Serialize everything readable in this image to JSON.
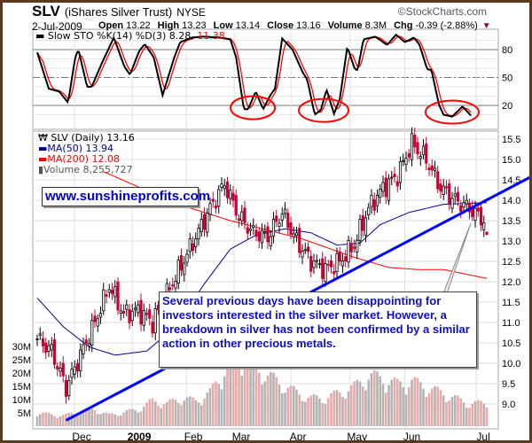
{
  "header": {
    "ticker": "SLV",
    "name": "(iShares Silver Trust)",
    "exchange": "NYSE",
    "copyright": "©StockCharts.com",
    "date": "2-Jul-2009",
    "open_label": "Open",
    "open": "13.22",
    "high_label": "High",
    "high": "13.23",
    "low_label": "Low",
    "low": "13.14",
    "close_label": "Close",
    "close": "13.16",
    "volume_label": "Volume",
    "volume": "8.3M",
    "chg_label": "Chg",
    "chg": "-0.39 (-2.88%)"
  },
  "annotations": {
    "website": "www.sunshineprofits.com",
    "note": "Several previous days have been disappointing for investors interested in the silver market. However, a breakdown in silver has not been confirmed by a similar action in other precious metals."
  },
  "colors": {
    "k_line": "#000000",
    "d_line": "#ff0000",
    "ma50": "#000099",
    "ma200": "#ff0000",
    "up_candle": "#000000",
    "down_candle": "#cc0033",
    "vol_up": "#b4b4b4",
    "vol_down": "#e9aaaa",
    "trendline": "#0000ff",
    "ellipse": "#ff0000",
    "text_blue": "#0000cc"
  },
  "chart_data": [
    {
      "type": "line",
      "title": "Slow STO %K(14) %D(3)",
      "legend": {
        "label": "Slow STO %K(14) %D(3)",
        "k_value": "8.28,",
        "d_value": "11.38"
      },
      "ylim": [
        0,
        100
      ],
      "y_ticks": [
        "80",
        "50",
        "20"
      ],
      "y_tick_values": [
        80,
        50,
        20
      ],
      "k_anchors": [
        [
          0,
          77
        ],
        [
          4,
          38
        ],
        [
          7.6,
          35
        ],
        [
          10.7,
          23
        ],
        [
          13.2,
          72
        ],
        [
          14.3,
          80
        ],
        [
          17.3,
          40
        ],
        [
          18.9,
          40
        ],
        [
          22.5,
          66
        ],
        [
          26.6,
          93
        ],
        [
          30.2,
          62
        ],
        [
          32.2,
          53
        ],
        [
          35.3,
          78
        ],
        [
          37.3,
          86
        ],
        [
          40.4,
          72
        ],
        [
          43.5,
          31
        ],
        [
          47.6,
          72
        ],
        [
          49.6,
          88
        ],
        [
          53.7,
          93
        ],
        [
          57.8,
          94
        ],
        [
          63,
          93
        ],
        [
          67,
          91
        ],
        [
          69,
          72
        ],
        [
          71.7,
          16
        ],
        [
          73.2,
          16
        ],
        [
          75.8,
          35
        ],
        [
          78.4,
          16
        ],
        [
          80.9,
          31
        ],
        [
          82.5,
          38
        ],
        [
          85,
          92
        ],
        [
          88.6,
          80
        ],
        [
          92.2,
          55
        ],
        [
          93.7,
          48
        ],
        [
          96.3,
          10
        ],
        [
          98.4,
          15
        ],
        [
          100.4,
          37
        ],
        [
          103,
          11
        ],
        [
          105,
          27
        ],
        [
          107.6,
          83
        ],
        [
          110.2,
          59
        ],
        [
          111.2,
          58
        ],
        [
          113.2,
          91
        ],
        [
          117.3,
          94
        ],
        [
          121.4,
          85
        ],
        [
          124.5,
          96
        ],
        [
          127.6,
          88
        ],
        [
          130.7,
          93
        ],
        [
          132.7,
          85
        ],
        [
          135.3,
          59
        ],
        [
          136.8,
          58
        ],
        [
          139.4,
          21
        ],
        [
          141,
          10
        ],
        [
          144,
          8
        ],
        [
          147.6,
          19
        ],
        [
          150.7,
          8.28
        ]
      ],
      "highlight_ellipses": [
        [
          74.8,
          17.5
        ],
        [
          99.4,
          14.6
        ],
        [
          144,
          12.8
        ]
      ]
    },
    {
      "type": "candlestick",
      "title": "SLV (Daily)",
      "legend": [
        {
          "label": "SLV (Daily) 13.16"
        },
        {
          "label": "MA(50) 13.94"
        },
        {
          "label": "MA(200) 12.08"
        },
        {
          "label": "Volume 8,255,727"
        }
      ],
      "ylim": [
        8.7,
        15.8
      ],
      "y_ticks": [
        "15.5",
        "15.0",
        "14.5",
        "14.0",
        "13.5",
        "13.0",
        "12.5",
        "12.0",
        "11.5",
        "11.0",
        "10.5",
        "10.0",
        "9.5",
        "9.0"
      ],
      "x_ticks": [
        "Dec",
        "2009",
        "Feb",
        "Mar",
        "Apr",
        "May",
        "Jun",
        "Jul"
      ],
      "x_tick_index": [
        15.4,
        35.4,
        54.2,
        70.8,
        90.5,
        111,
        130,
        154.8
      ],
      "bar_count": 157,
      "weekly_close_anchors": [
        [
          0,
          10.6
        ],
        [
          5,
          10.3
        ],
        [
          10,
          9.4
        ],
        [
          15,
          10.2
        ],
        [
          20,
          11.0
        ],
        [
          25,
          11.9
        ],
        [
          30,
          11.2
        ],
        [
          35,
          11.3
        ],
        [
          40,
          11.0
        ],
        [
          45,
          11.7
        ],
        [
          50,
          12.4
        ],
        [
          55,
          13.1
        ],
        [
          60,
          13.8
        ],
        [
          65,
          14.4
        ],
        [
          70,
          13.6
        ],
        [
          75,
          13.2
        ],
        [
          80,
          13.1
        ],
        [
          85,
          13.7
        ],
        [
          90,
          13.0
        ],
        [
          95,
          12.5
        ],
        [
          100,
          12.3
        ],
        [
          105,
          12.5
        ],
        [
          110,
          12.9
        ],
        [
          115,
          13.8
        ],
        [
          120,
          14.3
        ],
        [
          125,
          14.6
        ],
        [
          130,
          15.4
        ],
        [
          135,
          15.0
        ],
        [
          140,
          14.3
        ],
        [
          145,
          14.0
        ],
        [
          150,
          13.8
        ],
        [
          155,
          13.5
        ],
        [
          156,
          13.16
        ]
      ],
      "last_bar": {
        "open": 13.22,
        "high": 13.23,
        "low": 13.14,
        "close": 13.16
      },
      "ma50_anchors": [
        [
          0,
          11.6
        ],
        [
          9,
          10.9
        ],
        [
          18,
          10.4
        ],
        [
          27,
          10.2
        ],
        [
          38,
          10.3
        ],
        [
          48,
          10.9
        ],
        [
          58,
          11.95
        ],
        [
          67,
          12.8
        ],
        [
          76,
          13.15
        ],
        [
          86,
          13.3
        ],
        [
          95,
          13.2
        ],
        [
          104,
          12.9
        ],
        [
          112,
          12.95
        ],
        [
          119,
          13.4
        ],
        [
          129,
          13.7
        ],
        [
          141,
          13.9
        ],
        [
          156,
          13.94
        ]
      ],
      "ma200_anchors": [
        [
          23,
          14.7
        ],
        [
          49,
          13.9
        ],
        [
          67,
          13.5
        ],
        [
          92,
          13.05
        ],
        [
          110,
          12.6
        ],
        [
          122,
          12.35
        ],
        [
          132,
          12.3
        ],
        [
          141,
          12.3
        ],
        [
          156,
          12.08
        ]
      ],
      "trendline": [
        [
          10,
          8.6
        ],
        [
          172,
          14.6
        ]
      ],
      "volume_ticks": [
        "30M",
        "25M",
        "20M",
        "15M",
        "10M",
        "5M"
      ],
      "volume_tick_values": [
        30,
        25,
        20,
        15,
        10,
        5
      ],
      "weekly_volume_millions": [
        5,
        4,
        4,
        5,
        6,
        4,
        5,
        6,
        9,
        8,
        10,
        9,
        12,
        20,
        25,
        22,
        18,
        15,
        12,
        10,
        10,
        12,
        14,
        18,
        17,
        15,
        16,
        14,
        12,
        10,
        8,
        8.3
      ]
    }
  ]
}
